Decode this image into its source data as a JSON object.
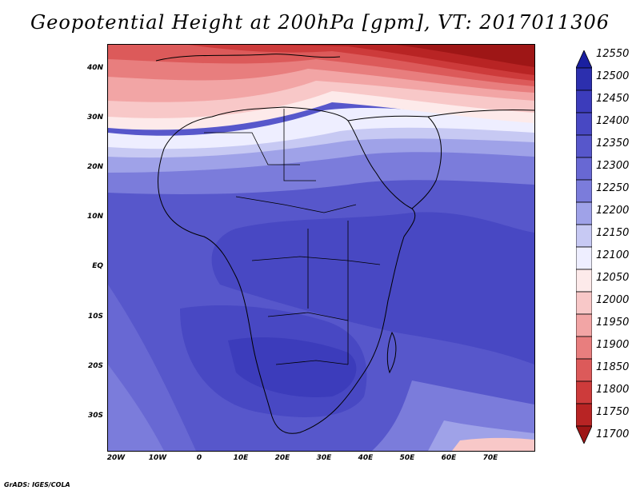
{
  "title": "Geopotential Height at 200hPa [gpm], VT: 2017011306",
  "credit": "GrADS: IGES/COLA",
  "lat_labels": [
    "40N",
    "30N",
    "20N",
    "10N",
    "EQ",
    "10S",
    "20S",
    "30S"
  ],
  "lon_labels": [
    "20W",
    "10W",
    "0",
    "10E",
    "20E",
    "30E",
    "40E",
    "50E",
    "60E",
    "70E"
  ],
  "colorbar": {
    "labels": [
      "12550",
      "12500",
      "12450",
      "12400",
      "12350",
      "12300",
      "12250",
      "12200",
      "12150",
      "12100",
      "12050",
      "12000",
      "11950",
      "11900",
      "11850",
      "11800",
      "11750",
      "11700"
    ],
    "colors": [
      "#1a1fa0",
      "#2c2fae",
      "#3c3cbb",
      "#4848c3",
      "#5757cb",
      "#6868d3",
      "#7b7cdb",
      "#9fa2e8",
      "#c7c9f3",
      "#eeeeff",
      "#fdeaea",
      "#f8c8c8",
      "#f2a5a5",
      "#e87e7e",
      "#dc5a5a",
      "#cd3b3b",
      "#b82424",
      "#9e1616"
    ]
  }
}
